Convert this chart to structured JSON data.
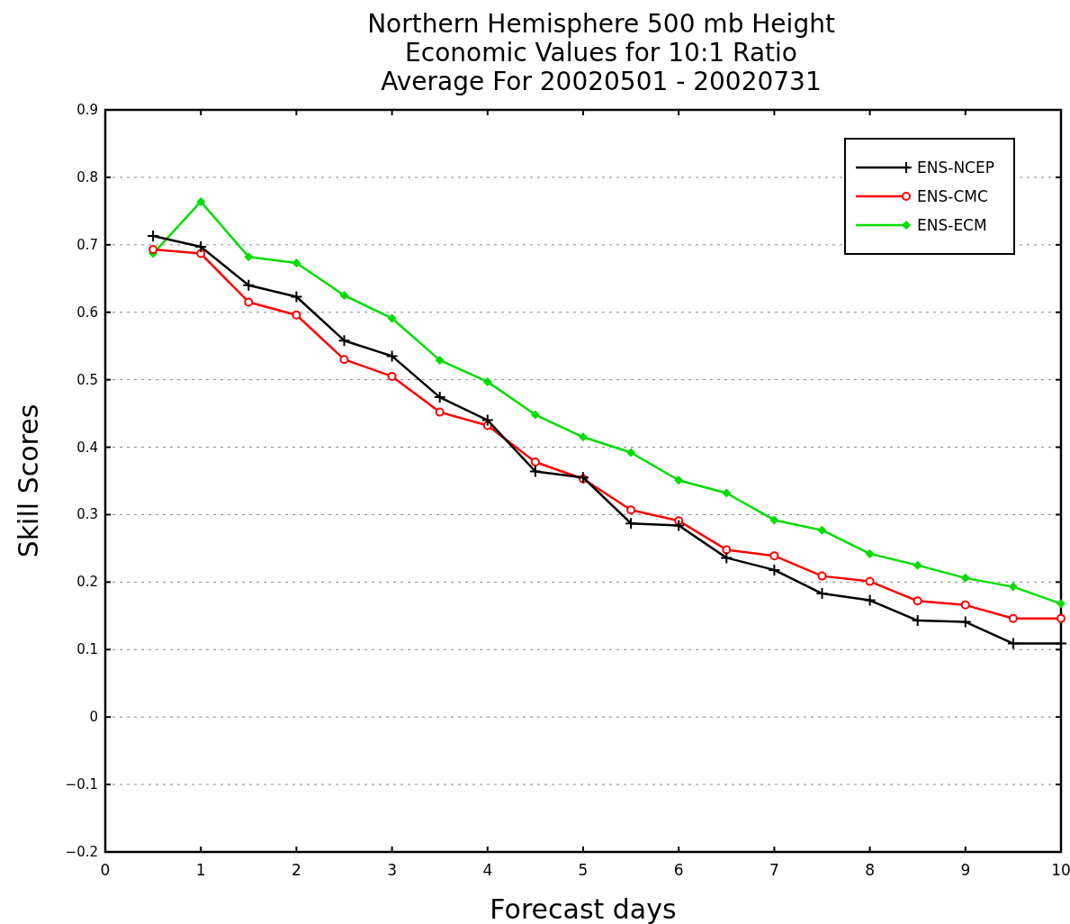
{
  "chart_data": {
    "type": "line",
    "title": "Northern Hemisphere 500 mb Height\nEconomic Values for 10:1 Ratio\nAverage For 20020501 - 20020731",
    "xlabel": "Forecast days",
    "ylabel": "Skill Scores",
    "x": [
      0.5,
      1,
      1.5,
      2,
      2.5,
      3,
      3.5,
      4,
      4.5,
      5,
      5.5,
      6,
      6.5,
      7,
      7.5,
      8,
      8.5,
      9,
      9.5,
      10
    ],
    "series": [
      {
        "name": "ENS-NCEP",
        "color": "#000000",
        "marker": "cross",
        "values": [
          0.713,
          0.697,
          0.64,
          0.623,
          0.558,
          0.535,
          0.474,
          0.44,
          0.364,
          0.355,
          0.287,
          0.284,
          0.236,
          0.218,
          0.183,
          0.173,
          0.143,
          0.141,
          0.109,
          0.109
        ]
      },
      {
        "name": "ENS-CMC",
        "color": "#ff0000",
        "marker": "circle",
        "values": [
          0.693,
          0.687,
          0.615,
          0.596,
          0.53,
          0.505,
          0.452,
          0.432,
          0.378,
          0.353,
          0.307,
          0.291,
          0.248,
          0.239,
          0.209,
          0.201,
          0.172,
          0.166,
          0.146,
          0.146
        ]
      },
      {
        "name": "ENS-ECM",
        "color": "#00dd00",
        "marker": "diamond",
        "values": [
          0.687,
          0.764,
          0.682,
          0.673,
          0.625,
          0.591,
          0.529,
          0.497,
          0.448,
          0.415,
          0.392,
          0.351,
          0.332,
          0.292,
          0.277,
          0.242,
          0.225,
          0.206,
          0.193,
          0.168
        ]
      }
    ],
    "xlim": [
      0,
      10
    ],
    "xticks": [
      0,
      1,
      2,
      3,
      4,
      5,
      6,
      7,
      8,
      9,
      10
    ],
    "ylim": [
      -0.2,
      0.9
    ],
    "yticks": [
      -0.2,
      -0.1,
      0,
      0.1,
      0.2,
      0.3,
      0.4,
      0.5,
      0.6,
      0.7,
      0.8,
      0.9
    ],
    "grid": "y",
    "legend": "top right"
  }
}
